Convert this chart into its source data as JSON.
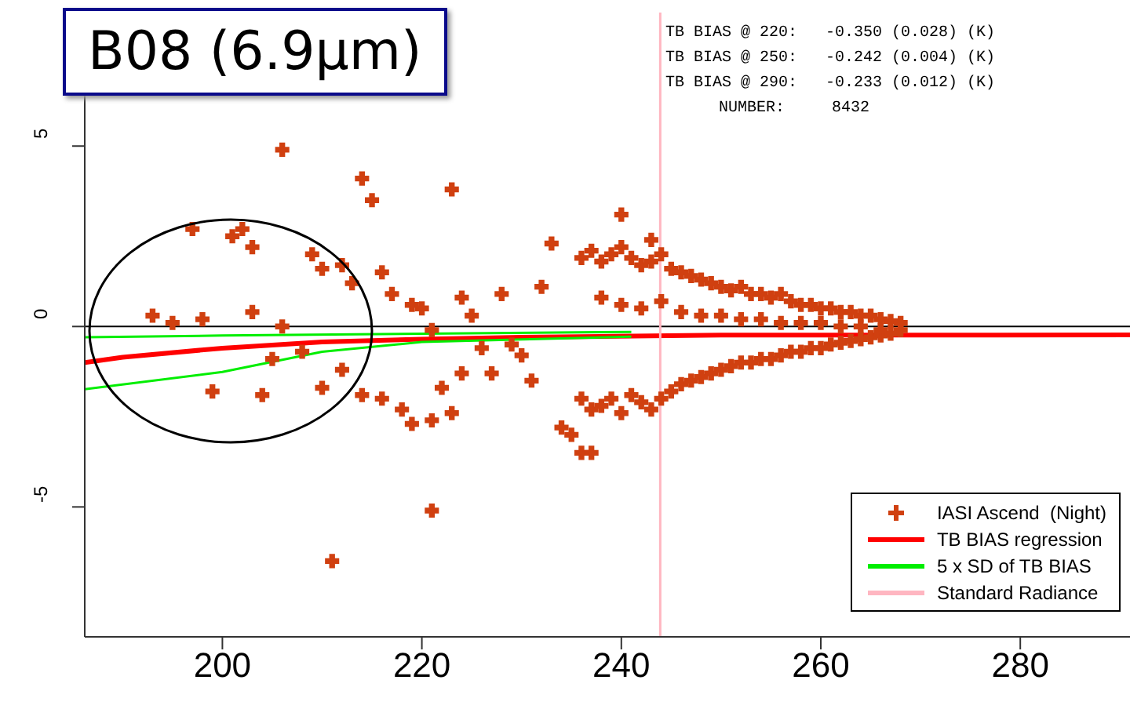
{
  "chart_data": {
    "type": "scatter",
    "title": "B08 (6.9μm)",
    "annotations": [
      "TB BIAS @ 220:   -0.350 (0.028) (K)",
      "TB BIAS @ 250:   -0.242 (0.004) (K)",
      "TB BIAS @ 290:   -0.233 (0.012) (K)",
      "NUMBER:     8432"
    ],
    "xlim": [
      186.2,
      291
    ],
    "xticks": [
      200,
      220,
      240,
      260,
      280
    ],
    "ylim": [
      -8.6,
      8.7
    ],
    "yticks": [
      -5,
      0,
      5
    ],
    "grid": false,
    "legend": "bottom right",
    "ref_lines": [
      {
        "axis": "y",
        "value": 0,
        "color": "#000000"
      }
    ],
    "series": [
      {
        "name": "IASI Ascend  (Night)",
        "marker": "cross",
        "color": "#d04010",
        "x": [
          197,
          201,
          202,
          203,
          206,
          209,
          210,
          212,
          213,
          214,
          215,
          216,
          217,
          219,
          220,
          221,
          223,
          224,
          225,
          226,
          228,
          229,
          193,
          195,
          198,
          203,
          205,
          206,
          208,
          199,
          204,
          210,
          212,
          214,
          216,
          218,
          219,
          221,
          223,
          222,
          221,
          211,
          224,
          227,
          230,
          232,
          233,
          231,
          234,
          235,
          236,
          237,
          240,
          243,
          236,
          237,
          238,
          239,
          240,
          241,
          242,
          243,
          244,
          245,
          246,
          247,
          248,
          249,
          250,
          251,
          252,
          253,
          254,
          255,
          256,
          257,
          258,
          259,
          260,
          261,
          262,
          263,
          264,
          265,
          266,
          267,
          268,
          236,
          237,
          238,
          239,
          240,
          241,
          242,
          243,
          244,
          245,
          246,
          247,
          248,
          249,
          250,
          251,
          252,
          253,
          254,
          255,
          256,
          257,
          258,
          259,
          260,
          261,
          262,
          263,
          264,
          265,
          266,
          267,
          238,
          240,
          242,
          244,
          246,
          248,
          250,
          252,
          254,
          256,
          258,
          260,
          262,
          264,
          266,
          268
        ],
        "values": [
          2.7,
          2.5,
          2.7,
          2.2,
          4.9,
          2.0,
          1.6,
          1.7,
          1.2,
          4.1,
          3.5,
          1.5,
          0.9,
          0.6,
          0.5,
          -0.1,
          3.8,
          0.8,
          0.3,
          -0.6,
          0.9,
          -0.5,
          0.3,
          0.1,
          0.2,
          0.4,
          -0.9,
          0.0,
          -0.7,
          -1.8,
          -1.9,
          -1.7,
          -1.2,
          -1.9,
          -2.0,
          -2.3,
          -2.7,
          -2.6,
          -2.4,
          -1.7,
          -5.1,
          -6.5,
          -1.3,
          -1.3,
          -0.8,
          1.1,
          2.3,
          -1.5,
          -2.8,
          -3.0,
          -3.5,
          -3.5,
          3.1,
          2.4,
          1.9,
          2.1,
          1.8,
          2.0,
          2.2,
          1.9,
          1.7,
          1.8,
          2.0,
          1.6,
          1.5,
          1.4,
          1.3,
          1.2,
          1.1,
          1.0,
          1.1,
          0.9,
          0.9,
          0.8,
          0.9,
          0.7,
          0.6,
          0.6,
          0.5,
          0.5,
          0.4,
          0.4,
          0.3,
          0.3,
          0.2,
          0.15,
          0.1,
          -2.0,
          -2.3,
          -2.2,
          -2.0,
          -2.4,
          -1.9,
          -2.1,
          -2.3,
          -2.0,
          -1.8,
          -1.6,
          -1.5,
          -1.4,
          -1.3,
          -1.2,
          -1.1,
          -1.0,
          -1.0,
          -0.9,
          -0.9,
          -0.8,
          -0.7,
          -0.7,
          -0.6,
          -0.6,
          -0.5,
          -0.45,
          -0.4,
          -0.35,
          -0.3,
          -0.25,
          -0.2,
          0.8,
          0.6,
          0.5,
          0.7,
          0.4,
          0.3,
          0.3,
          0.2,
          0.2,
          0.1,
          0.1,
          0.1,
          0.0,
          0.0,
          -0.1,
          -0.1
        ]
      },
      {
        "name": "TB BIAS regression",
        "type": "line",
        "color": "#ff0000",
        "x": [
          186.2,
          190,
          200,
          210,
          220,
          230,
          250,
          270,
          291
        ],
        "values": [
          -1.0,
          -0.85,
          -0.6,
          -0.43,
          -0.35,
          -0.3,
          -0.24,
          -0.24,
          -0.23
        ]
      },
      {
        "name": "5 x SD of TB BIAS",
        "type": "line",
        "color": "#00ee00",
        "x": [
          186.2,
          200,
          220,
          241
        ],
        "values": [
          -0.3,
          -0.25,
          -0.2,
          -0.15
        ]
      },
      {
        "type": "line",
        "color": "#00ee00",
        "x": [
          186.2,
          200,
          210,
          220,
          241
        ],
        "values": [
          -1.74,
          -1.26,
          -0.7,
          -0.43,
          -0.28
        ]
      },
      {
        "name": "Standard Radiance",
        "type": "line",
        "color": "#ffb6c1",
        "x": [
          243.9,
          243.9
        ],
        "values": [
          -8.6,
          8.7
        ]
      }
    ]
  }
}
